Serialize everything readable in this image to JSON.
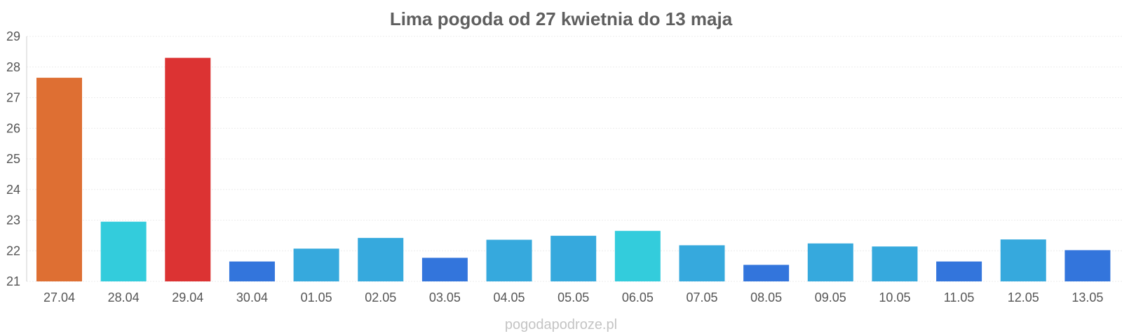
{
  "chart_data": {
    "type": "bar",
    "title": "Lima pogoda od 27 kwietnia do 13 maja",
    "xlabel": "",
    "ylabel": "",
    "ylim": [
      21,
      29
    ],
    "yticks": [
      21,
      22,
      23,
      24,
      25,
      26,
      27,
      28,
      29
    ],
    "grid": true,
    "legend": "none",
    "categories": [
      "27.04",
      "28.04",
      "29.04",
      "30.04",
      "01.05",
      "02.05",
      "03.05",
      "04.05",
      "05.05",
      "06.05",
      "07.05",
      "08.05",
      "09.05",
      "10.05",
      "11.05",
      "12.05",
      "13.05"
    ],
    "values": [
      27.65,
      22.95,
      28.3,
      21.65,
      22.07,
      22.42,
      21.77,
      22.36,
      22.49,
      22.65,
      22.18,
      21.54,
      22.24,
      22.14,
      21.65,
      22.37,
      22.02
    ],
    "colors": [
      "#de6f33",
      "#33ccdc",
      "#dc3333",
      "#3375dc",
      "#36a9dd",
      "#36a9dd",
      "#3375dc",
      "#36a9dd",
      "#36a9dd",
      "#33ccdc",
      "#36a9dd",
      "#3375dc",
      "#36a9dd",
      "#36a9dd",
      "#3375dc",
      "#36a9dd",
      "#3375dc"
    ]
  },
  "watermark": "pogodapodroze.pl"
}
